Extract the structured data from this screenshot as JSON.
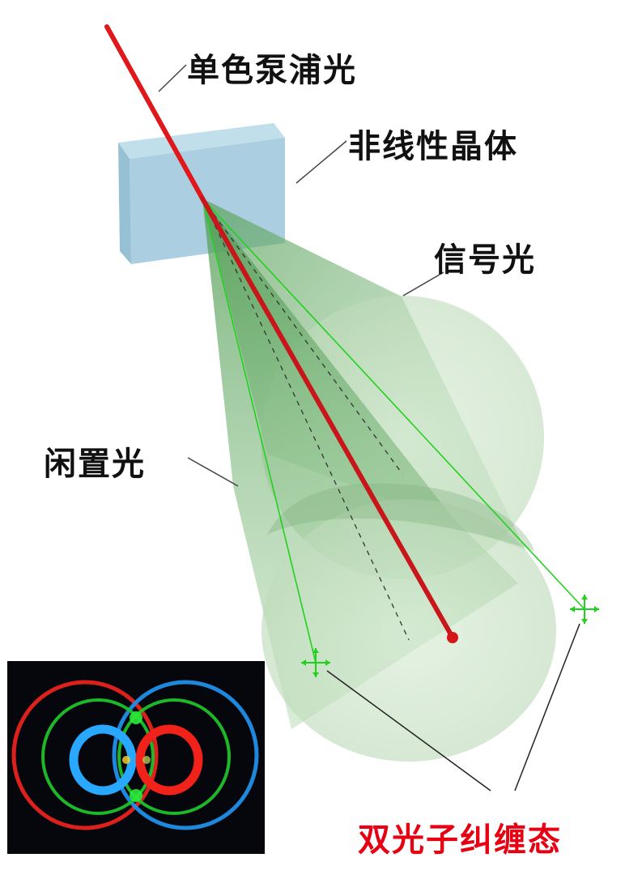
{
  "labels": {
    "pump": "单色泵浦光",
    "crystal": "非线性晶体",
    "signal": "信号光",
    "idler": "闲置光",
    "entangled": "双光子纠缠态"
  },
  "colors": {
    "pump_beam": "#e0181b",
    "crystal_fill": "#9cc7da",
    "cone_fill": "#74b874",
    "ray_green": "#22d11e",
    "label_red": "#e60012",
    "inset_bg": "#05070d",
    "ring_red": "#e8231f",
    "ring_green": "#1fc22b",
    "ring_blue": "#1f8fe8"
  },
  "icons": {
    "detector_markers": "crosshair-arrow-icon"
  }
}
